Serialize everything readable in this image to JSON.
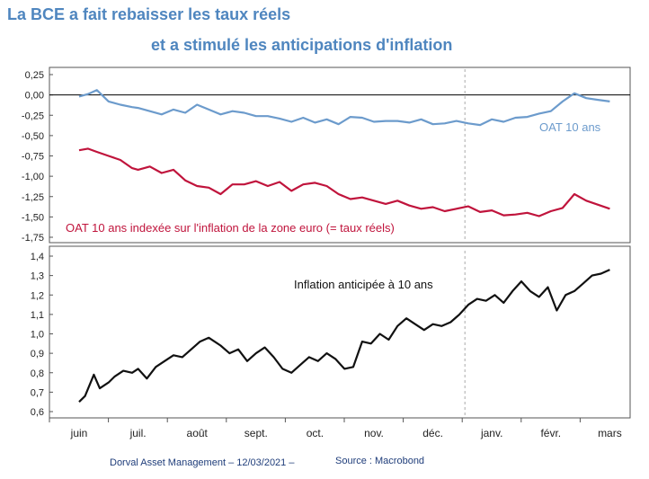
{
  "titles": {
    "line1": "La BCE a fait rebaisser les taux réels",
    "line2": "et a stimulé les anticipations d'inflation"
  },
  "footer": {
    "left": "Dorval Asset Management – 12/03/2021 –",
    "right": "Source : Macrobond"
  },
  "colors": {
    "oat_nominal": "#6c9bcc",
    "oat_real": "#c0143c",
    "inflation": "#111111",
    "title": "#4f86bf"
  },
  "chart_data": [
    {
      "type": "line",
      "x_months": [
        "juin",
        "juil.",
        "août",
        "sept.",
        "oct.",
        "nov.",
        "déc.",
        "janv.",
        "févr.",
        "mars"
      ],
      "ylim": [
        -1.75,
        0.25
      ],
      "yticks": [
        "0,25",
        "0,00",
        "-0,25",
        "-0,50",
        "-0,75",
        "-1,00",
        "-1,25",
        "-1,50",
        "-1,75"
      ],
      "zero_line": true,
      "year_divider": "janv.",
      "series": [
        {
          "name": "OAT 10 ans",
          "color": "#6c9bcc",
          "x": [
            0.0,
            0.15,
            0.3,
            0.5,
            0.7,
            0.9,
            1.0,
            1.2,
            1.4,
            1.6,
            1.8,
            2.0,
            2.2,
            2.4,
            2.6,
            2.8,
            3.0,
            3.2,
            3.4,
            3.6,
            3.8,
            4.0,
            4.2,
            4.4,
            4.6,
            4.8,
            5.0,
            5.2,
            5.4,
            5.6,
            5.8,
            6.0,
            6.2,
            6.4,
            6.6,
            6.8,
            7.0,
            7.2,
            7.4,
            7.6,
            7.8,
            8.0,
            8.2,
            8.4,
            8.6,
            8.8,
            9.0
          ],
          "values": [
            -0.02,
            0.01,
            0.06,
            -0.08,
            -0.12,
            -0.15,
            -0.16,
            -0.2,
            -0.24,
            -0.18,
            -0.22,
            -0.12,
            -0.18,
            -0.24,
            -0.2,
            -0.22,
            -0.26,
            -0.26,
            -0.29,
            -0.33,
            -0.28,
            -0.34,
            -0.3,
            -0.36,
            -0.27,
            -0.28,
            -0.33,
            -0.32,
            -0.32,
            -0.34,
            -0.3,
            -0.36,
            -0.35,
            -0.32,
            -0.35,
            -0.37,
            -0.3,
            -0.33,
            -0.28,
            -0.27,
            -0.23,
            -0.2,
            -0.08,
            0.02,
            -0.04,
            -0.06,
            -0.08
          ]
        },
        {
          "name": "OAT 10 ans indexée sur l'inflation de la zone euro (= taux réels)",
          "color": "#c0143c",
          "x": [
            0.0,
            0.15,
            0.3,
            0.5,
            0.7,
            0.9,
            1.0,
            1.2,
            1.4,
            1.6,
            1.8,
            2.0,
            2.2,
            2.4,
            2.6,
            2.8,
            3.0,
            3.2,
            3.4,
            3.6,
            3.8,
            4.0,
            4.2,
            4.4,
            4.6,
            4.8,
            5.0,
            5.2,
            5.4,
            5.6,
            5.8,
            6.0,
            6.2,
            6.4,
            6.6,
            6.8,
            7.0,
            7.2,
            7.4,
            7.6,
            7.8,
            8.0,
            8.2,
            8.4,
            8.6,
            8.8,
            9.0
          ],
          "values": [
            -0.68,
            -0.66,
            -0.7,
            -0.75,
            -0.8,
            -0.9,
            -0.92,
            -0.88,
            -0.96,
            -0.92,
            -1.05,
            -1.12,
            -1.14,
            -1.22,
            -1.1,
            -1.1,
            -1.06,
            -1.12,
            -1.07,
            -1.18,
            -1.1,
            -1.08,
            -1.12,
            -1.22,
            -1.28,
            -1.26,
            -1.3,
            -1.34,
            -1.3,
            -1.36,
            -1.4,
            -1.38,
            -1.43,
            -1.4,
            -1.37,
            -1.44,
            -1.42,
            -1.48,
            -1.47,
            -1.45,
            -1.49,
            -1.43,
            -1.39,
            -1.22,
            -1.3,
            -1.35,
            -1.4
          ]
        }
      ]
    },
    {
      "type": "line",
      "x_months": [
        "juin",
        "juil.",
        "août",
        "sept.",
        "oct.",
        "nov.",
        "déc.",
        "janv.",
        "févr.",
        "mars"
      ],
      "ylim": [
        0.6,
        1.4
      ],
      "yticks": [
        "1,4",
        "1,3",
        "1,2",
        "1,1",
        "1,0",
        "0,9",
        "0,8",
        "0,7",
        "0,6"
      ],
      "year_divider": "janv.",
      "series": [
        {
          "name": "Inflation anticipée à 10 ans",
          "color": "#111111",
          "x": [
            0.0,
            0.1,
            0.25,
            0.35,
            0.5,
            0.6,
            0.75,
            0.9,
            1.0,
            1.15,
            1.3,
            1.45,
            1.6,
            1.75,
            1.9,
            2.05,
            2.2,
            2.4,
            2.55,
            2.7,
            2.85,
            3.0,
            3.15,
            3.3,
            3.45,
            3.6,
            3.75,
            3.9,
            4.05,
            4.2,
            4.35,
            4.5,
            4.65,
            4.8,
            4.95,
            5.1,
            5.25,
            5.4,
            5.55,
            5.7,
            5.85,
            6.0,
            6.15,
            6.3,
            6.45,
            6.6,
            6.75,
            6.9,
            7.05,
            7.2,
            7.35,
            7.5,
            7.65,
            7.8,
            7.95,
            8.1,
            8.25,
            8.4,
            8.55,
            8.7,
            8.85,
            9.0
          ],
          "values": [
            0.65,
            0.68,
            0.79,
            0.72,
            0.75,
            0.78,
            0.81,
            0.8,
            0.82,
            0.77,
            0.83,
            0.86,
            0.89,
            0.88,
            0.92,
            0.96,
            0.98,
            0.94,
            0.9,
            0.92,
            0.86,
            0.9,
            0.93,
            0.88,
            0.82,
            0.8,
            0.84,
            0.88,
            0.86,
            0.9,
            0.87,
            0.82,
            0.83,
            0.96,
            0.95,
            1.0,
            0.97,
            1.04,
            1.08,
            1.05,
            1.02,
            1.05,
            1.04,
            1.06,
            1.1,
            1.15,
            1.18,
            1.17,
            1.2,
            1.16,
            1.22,
            1.27,
            1.22,
            1.19,
            1.24,
            1.12,
            1.2,
            1.22,
            1.26,
            1.3,
            1.31,
            1.33
          ]
        }
      ]
    }
  ]
}
